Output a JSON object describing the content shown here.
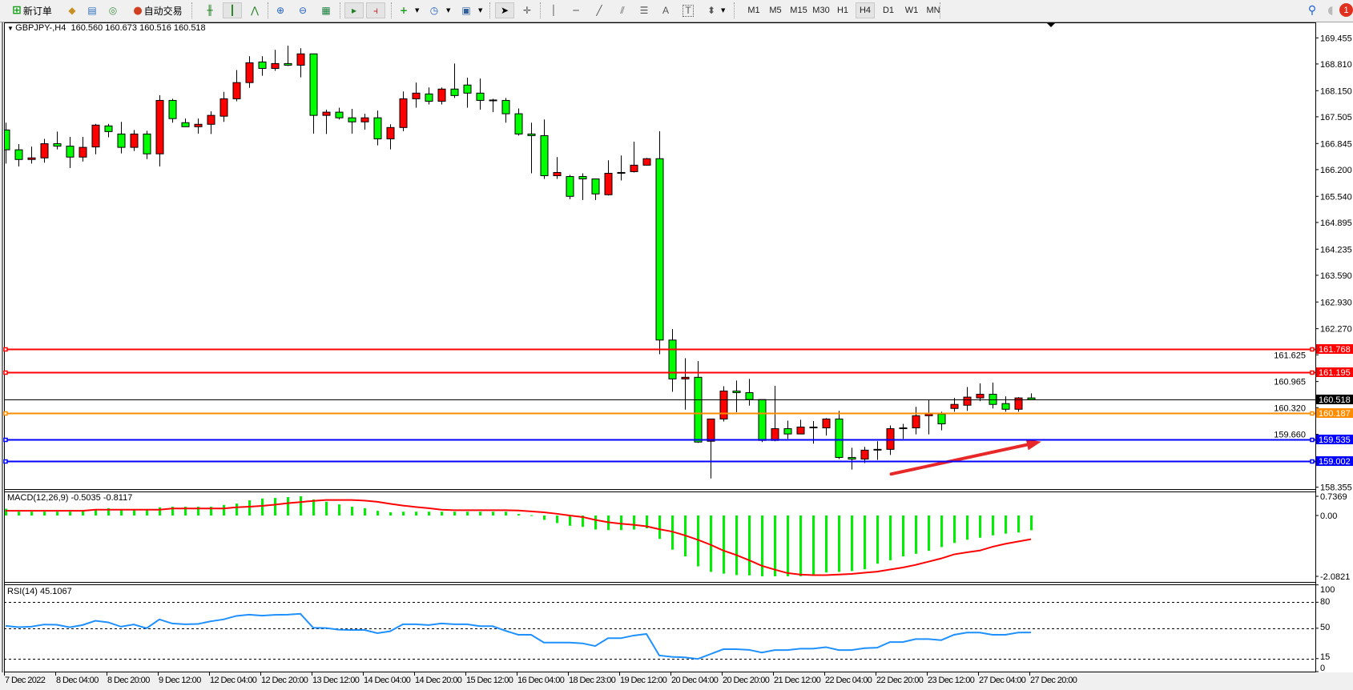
{
  "toolbar": {
    "new_order_label": "新订单",
    "autotrading_label": "自动交易",
    "timeframes": [
      "M1",
      "M5",
      "M15",
      "M30",
      "H1",
      "H4",
      "D1",
      "W1",
      "MN"
    ],
    "active_timeframe": "H4",
    "notification_count": "1",
    "icons": [
      "new-order-icon",
      "market-watch-icon",
      "data-window-icon",
      "signals-icon",
      "autotrading-icon",
      "bar-chart-icon",
      "candlestick-icon",
      "line-chart-icon",
      "zoom-in-icon",
      "zoom-out-icon",
      "tile-windows-icon",
      "autoscroll-icon",
      "chart-shift-icon",
      "indicators-icon",
      "periods-icon",
      "templates-icon",
      "cursor-icon",
      "crosshair-icon",
      "vertical-line-icon",
      "horizontal-line-icon",
      "trendline-icon",
      "equidistant-channel-icon",
      "fibonacci-icon",
      "text-icon",
      "text-label-icon",
      "arrows-icon",
      "search-icon",
      "notifications-icon"
    ]
  },
  "header": {
    "symbol": "GBPJPY-,H4",
    "ohlc": "160.560 160.673 160.516 160.518"
  },
  "macd_label": "MACD(12,26,9) -0.5035 -0.8117",
  "rsi_label": "RSI(14) 45.1067",
  "colors": {
    "bull": "#ff0000",
    "bear": "#00ff00",
    "macd_hist": "#00ee00",
    "macd_signal": "#ff0000",
    "rsi": "#1e90ff",
    "arrow": "#e82828"
  },
  "chart_data": [
    {
      "type": "candlestick",
      "symbol": "GBPJPY-",
      "timeframe": "H4",
      "ylim": [
        158.355,
        169.455
      ],
      "y_ticks": [
        "169.455",
        "168.810",
        "168.150",
        "167.505",
        "166.845",
        "166.200",
        "165.540",
        "164.895",
        "164.235",
        "163.590",
        "162.930",
        "162.270",
        "161.625",
        "160.965",
        "160.320",
        "159.660",
        "158.355"
      ],
      "x_tick_labels": [
        "7 Dec 2022",
        "8 Dec 04:00",
        "8 Dec 20:00",
        "9 Dec 12:00",
        "12 Dec 04:00",
        "12 Dec 20:00",
        "13 Dec 12:00",
        "14 Dec 04:00",
        "14 Dec 20:00",
        "15 Dec 12:00",
        "16 Dec 04:00",
        "18 Dec 23:00",
        "19 Dec 12:00",
        "20 Dec 04:00",
        "20 Dec 20:00",
        "21 Dec 12:00",
        "22 Dec 04:00",
        "22 Dec 20:00",
        "23 Dec 12:00",
        "27 Dec 04:00",
        "27 Dec 20:00"
      ],
      "x_tick_every_bars": 4,
      "ohlc": [
        [
          167.18,
          167.36,
          166.35,
          166.69
        ],
        [
          166.69,
          166.83,
          166.28,
          166.45
        ],
        [
          166.45,
          166.77,
          166.35,
          166.49
        ],
        [
          166.49,
          166.96,
          166.37,
          166.84
        ],
        [
          166.84,
          167.14,
          166.7,
          166.78
        ],
        [
          166.78,
          167.01,
          166.24,
          166.51
        ],
        [
          166.51,
          167.01,
          166.4,
          166.75
        ],
        [
          166.76,
          167.33,
          166.58,
          167.3
        ],
        [
          167.28,
          167.33,
          167.0,
          167.14
        ],
        [
          167.08,
          167.38,
          166.6,
          166.75
        ],
        [
          166.75,
          167.18,
          166.66,
          167.08
        ],
        [
          167.08,
          167.16,
          166.46,
          166.59
        ],
        [
          166.59,
          168.04,
          166.28,
          167.91
        ],
        [
          167.91,
          167.95,
          167.36,
          167.46
        ],
        [
          167.36,
          167.46,
          167.26,
          167.26
        ],
        [
          167.26,
          167.46,
          167.09,
          167.32
        ],
        [
          167.32,
          167.64,
          167.08,
          167.54
        ],
        [
          167.52,
          168.12,
          167.38,
          167.95
        ],
        [
          167.95,
          168.66,
          167.89,
          168.35
        ],
        [
          168.35,
          169.0,
          168.22,
          168.84
        ],
        [
          168.86,
          169.0,
          168.52,
          168.7
        ],
        [
          168.7,
          169.16,
          168.64,
          168.82
        ],
        [
          168.82,
          169.26,
          168.76,
          168.78
        ],
        [
          168.78,
          169.2,
          168.48,
          169.06
        ],
        [
          169.06,
          169.06,
          167.09,
          167.54
        ],
        [
          167.54,
          167.68,
          167.08,
          167.62
        ],
        [
          167.62,
          167.73,
          167.44,
          167.48
        ],
        [
          167.48,
          167.7,
          167.09,
          167.38
        ],
        [
          167.38,
          167.58,
          167.19,
          167.48
        ],
        [
          167.48,
          167.66,
          166.8,
          166.96
        ],
        [
          166.96,
          167.32,
          166.7,
          167.24
        ],
        [
          167.24,
          168.13,
          167.15,
          167.95
        ],
        [
          167.95,
          168.35,
          167.73,
          168.09
        ],
        [
          168.07,
          168.23,
          167.81,
          167.89
        ],
        [
          167.89,
          168.23,
          167.81,
          168.19
        ],
        [
          168.19,
          168.82,
          167.97,
          168.03
        ],
        [
          168.29,
          168.47,
          167.73,
          168.09
        ],
        [
          168.09,
          168.45,
          167.68,
          167.91
        ],
        [
          167.91,
          167.95,
          167.62,
          167.92
        ],
        [
          167.91,
          167.97,
          167.36,
          167.58
        ],
        [
          167.58,
          167.71,
          167.04,
          167.08
        ],
        [
          167.08,
          167.36,
          166.11,
          167.04
        ],
        [
          167.04,
          167.44,
          165.97,
          166.05
        ],
        [
          166.05,
          166.51,
          165.97,
          166.13
        ],
        [
          166.03,
          166.07,
          165.47,
          165.54
        ],
        [
          166.03,
          166.11,
          165.45,
          165.97
        ],
        [
          165.97,
          165.97,
          165.45,
          165.6
        ],
        [
          165.58,
          166.43,
          165.56,
          166.11
        ],
        [
          166.12,
          166.55,
          165.93,
          166.13
        ],
        [
          166.15,
          166.89,
          166.13,
          166.31
        ],
        [
          166.31,
          166.49,
          166.3,
          166.47
        ],
        [
          166.47,
          167.15,
          161.64,
          161.99
        ],
        [
          161.99,
          162.26,
          160.71,
          161.03
        ],
        [
          161.03,
          161.54,
          160.27,
          161.07
        ],
        [
          161.07,
          161.47,
          159.45,
          159.47
        ],
        [
          159.49,
          160.04,
          158.57,
          160.04
        ],
        [
          160.04,
          160.85,
          159.98,
          160.73
        ],
        [
          160.73,
          160.99,
          160.21,
          160.69
        ],
        [
          160.69,
          161.03,
          160.37,
          160.52
        ],
        [
          160.52,
          160.52,
          159.47,
          159.51
        ],
        [
          159.51,
          160.86,
          159.49,
          159.8
        ],
        [
          159.8,
          160.0,
          159.55,
          159.67
        ],
        [
          159.67,
          160.02,
          159.67,
          159.84
        ],
        [
          159.84,
          159.99,
          159.43,
          159.84
        ],
        [
          159.82,
          160.06,
          159.63,
          160.04
        ],
        [
          160.04,
          160.24,
          159.05,
          159.09
        ],
        [
          159.09,
          159.33,
          158.79,
          159.05
        ],
        [
          159.05,
          159.35,
          158.95,
          159.27
        ],
        [
          159.28,
          159.49,
          159.03,
          159.29
        ],
        [
          159.29,
          159.88,
          159.15,
          159.8
        ],
        [
          159.82,
          159.92,
          159.55,
          159.82
        ],
        [
          159.82,
          160.34,
          159.66,
          160.12
        ],
        [
          160.12,
          160.52,
          159.66,
          160.16
        ],
        [
          160.16,
          160.22,
          159.76,
          159.92
        ],
        [
          160.3,
          160.56,
          160.22,
          160.4
        ],
        [
          160.38,
          160.83,
          160.24,
          160.58
        ],
        [
          160.56,
          160.92,
          160.48,
          160.65
        ],
        [
          160.65,
          160.94,
          160.3,
          160.4
        ],
        [
          160.42,
          160.6,
          160.22,
          160.28
        ],
        [
          160.28,
          160.58,
          160.22,
          160.56
        ],
        [
          160.56,
          160.673,
          160.516,
          160.518
        ]
      ],
      "horizontal_lines": [
        {
          "price": "161.768",
          "color": "#ff0000"
        },
        {
          "price": "161.195",
          "color": "#ff0000"
        },
        {
          "price": "160.518",
          "color": "#000000",
          "kind": "bid"
        },
        {
          "price": "160.187",
          "color": "#ff8c00"
        },
        {
          "price": "159.535",
          "color": "#0000ff"
        },
        {
          "price": "159.002",
          "color": "#0000ff"
        }
      ],
      "annotations": [
        {
          "type": "arrow",
          "from": {
            "bar": 69.1,
            "price": 158.68
          },
          "to": {
            "bar": 80.8,
            "price": 159.48
          },
          "color": "#e82828"
        }
      ]
    },
    {
      "type": "bar+line",
      "name": "MACD(12,26,9)",
      "ylim": [
        -2.0821,
        0.7369
      ],
      "y_ticks": [
        "0.7369",
        "0.00",
        "-2.0821"
      ],
      "histogram": [
        0.23,
        0.13,
        0.13,
        0.13,
        0.13,
        0.13,
        0.18,
        0.2,
        0.25,
        0.2,
        0.2,
        0.2,
        0.28,
        0.3,
        0.3,
        0.3,
        0.3,
        0.36,
        0.41,
        0.52,
        0.58,
        0.6,
        0.63,
        0.66,
        0.55,
        0.47,
        0.38,
        0.3,
        0.25,
        0.16,
        0.11,
        0.13,
        0.13,
        0.13,
        0.13,
        0.13,
        0.13,
        0.13,
        0.13,
        0.13,
        0.05,
        0.01,
        -0.15,
        -0.26,
        -0.35,
        -0.39,
        -0.48,
        -0.5,
        -0.5,
        -0.48,
        -0.44,
        -0.8,
        -1.17,
        -1.4,
        -1.74,
        -1.93,
        -1.99,
        -2.04,
        -2.05,
        -2.08,
        -2.08,
        -2.08,
        -2.08,
        -2.02,
        -1.95,
        -1.93,
        -1.9,
        -1.84,
        -1.65,
        -1.53,
        -1.4,
        -1.31,
        -1.21,
        -1.08,
        -0.94,
        -0.83,
        -0.76,
        -0.68,
        -0.62,
        -0.58,
        -0.5035
      ],
      "signal": [
        0.16,
        0.16,
        0.16,
        0.16,
        0.16,
        0.16,
        0.16,
        0.2,
        0.2,
        0.2,
        0.2,
        0.2,
        0.2,
        0.24,
        0.24,
        0.24,
        0.24,
        0.24,
        0.28,
        0.3,
        0.33,
        0.37,
        0.42,
        0.46,
        0.5,
        0.53,
        0.53,
        0.53,
        0.51,
        0.47,
        0.4,
        0.34,
        0.29,
        0.25,
        0.2,
        0.18,
        0.18,
        0.18,
        0.18,
        0.18,
        0.17,
        0.14,
        0.11,
        0.06,
        0,
        -0.05,
        -0.15,
        -0.23,
        -0.28,
        -0.32,
        -0.37,
        -0.47,
        -0.55,
        -0.68,
        -0.83,
        -1.0,
        -1.2,
        -1.35,
        -1.53,
        -1.72,
        -1.85,
        -1.97,
        -2.02,
        -2.04,
        -2.04,
        -2.02,
        -2.0,
        -1.96,
        -1.92,
        -1.85,
        -1.78,
        -1.69,
        -1.58,
        -1.47,
        -1.33,
        -1.26,
        -1.2,
        -1.07,
        -0.97,
        -0.89,
        -0.8117
      ]
    },
    {
      "type": "line",
      "name": "RSI(14)",
      "ylim": [
        0,
        100
      ],
      "y_ticks": [
        "100",
        "80",
        "50",
        "15",
        "0"
      ],
      "levels": [
        80,
        50,
        15
      ],
      "values": [
        52.7,
        51.2,
        51.8,
        54.3,
        54,
        51.2,
        53.7,
        58.6,
        56.8,
        51.8,
        54.3,
        50,
        60.2,
        55.5,
        54.6,
        54.9,
        58,
        60.2,
        64.2,
        65.7,
        64.5,
        65.4,
        65.7,
        66.7,
        50.5,
        50.2,
        48.4,
        48,
        48,
        44.3,
        46.5,
        54.6,
        54.6,
        53.7,
        55.5,
        54.6,
        54.6,
        52.4,
        52.4,
        47.1,
        42.5,
        42.5,
        33.5,
        33.5,
        33.5,
        32.6,
        29.5,
        38.5,
        38.5,
        41.6,
        43.4,
        18.6,
        17,
        16.4,
        14.6,
        20.2,
        25.8,
        25.8,
        25.1,
        22,
        24.8,
        24.8,
        26.4,
        26.4,
        28.2,
        24.8,
        24.8,
        27,
        27.6,
        34.1,
        34.1,
        37.5,
        37.5,
        36.3,
        42.5,
        45,
        45,
        42.5,
        42.5,
        45,
        45.1067
      ]
    }
  ]
}
